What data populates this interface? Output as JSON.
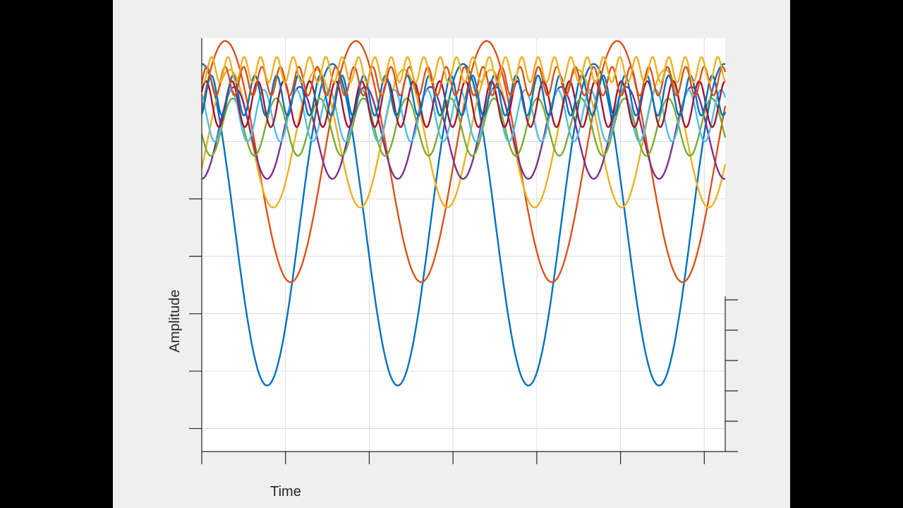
{
  "chart_data": {
    "type": "line",
    "xlabel": "Time",
    "ylabel": "Amplitude",
    "title": "",
    "xlim": [
      0,
      6.25
    ],
    "ylim": [
      -6.4,
      0.8
    ],
    "grid": true,
    "x_samples": 1250,
    "series": [
      {
        "color": "#0072bd",
        "offset": -2.45,
        "amplitude": 2.8,
        "period": 1.56,
        "phase": 0.0
      },
      {
        "color": "#d95319",
        "offset": -1.35,
        "amplitude": 2.1,
        "period": 1.56,
        "phase": 0.18
      },
      {
        "color": "#edb120",
        "offset": -0.95,
        "amplitude": 1.2,
        "period": 1.04,
        "phase": 0.32
      },
      {
        "color": "#7e2f8e",
        "offset": -0.85,
        "amplitude": 0.8,
        "period": 0.78,
        "phase": 0.5
      },
      {
        "color": "#77ac30",
        "offset": -0.75,
        "amplitude": 0.5,
        "period": 0.52,
        "phase": 0.71
      },
      {
        "color": "#4dbeee",
        "offset": -0.55,
        "amplitude": 0.45,
        "period": 0.39,
        "phase": 0.9
      },
      {
        "color": "#a2142f",
        "offset": -0.35,
        "amplitude": 0.4,
        "period": 0.31,
        "phase": 0.16
      },
      {
        "color": "#0072bd",
        "offset": -0.2,
        "amplitude": 0.35,
        "period": 0.26,
        "phase": 0.44
      },
      {
        "color": "#d95319",
        "offset": 0.05,
        "amplitude": 0.25,
        "period": 0.22,
        "phase": 0.27
      },
      {
        "color": "#edb120",
        "offset": 0.25,
        "amplitude": 0.22,
        "period": 0.195,
        "phase": 0.6
      }
    ]
  }
}
